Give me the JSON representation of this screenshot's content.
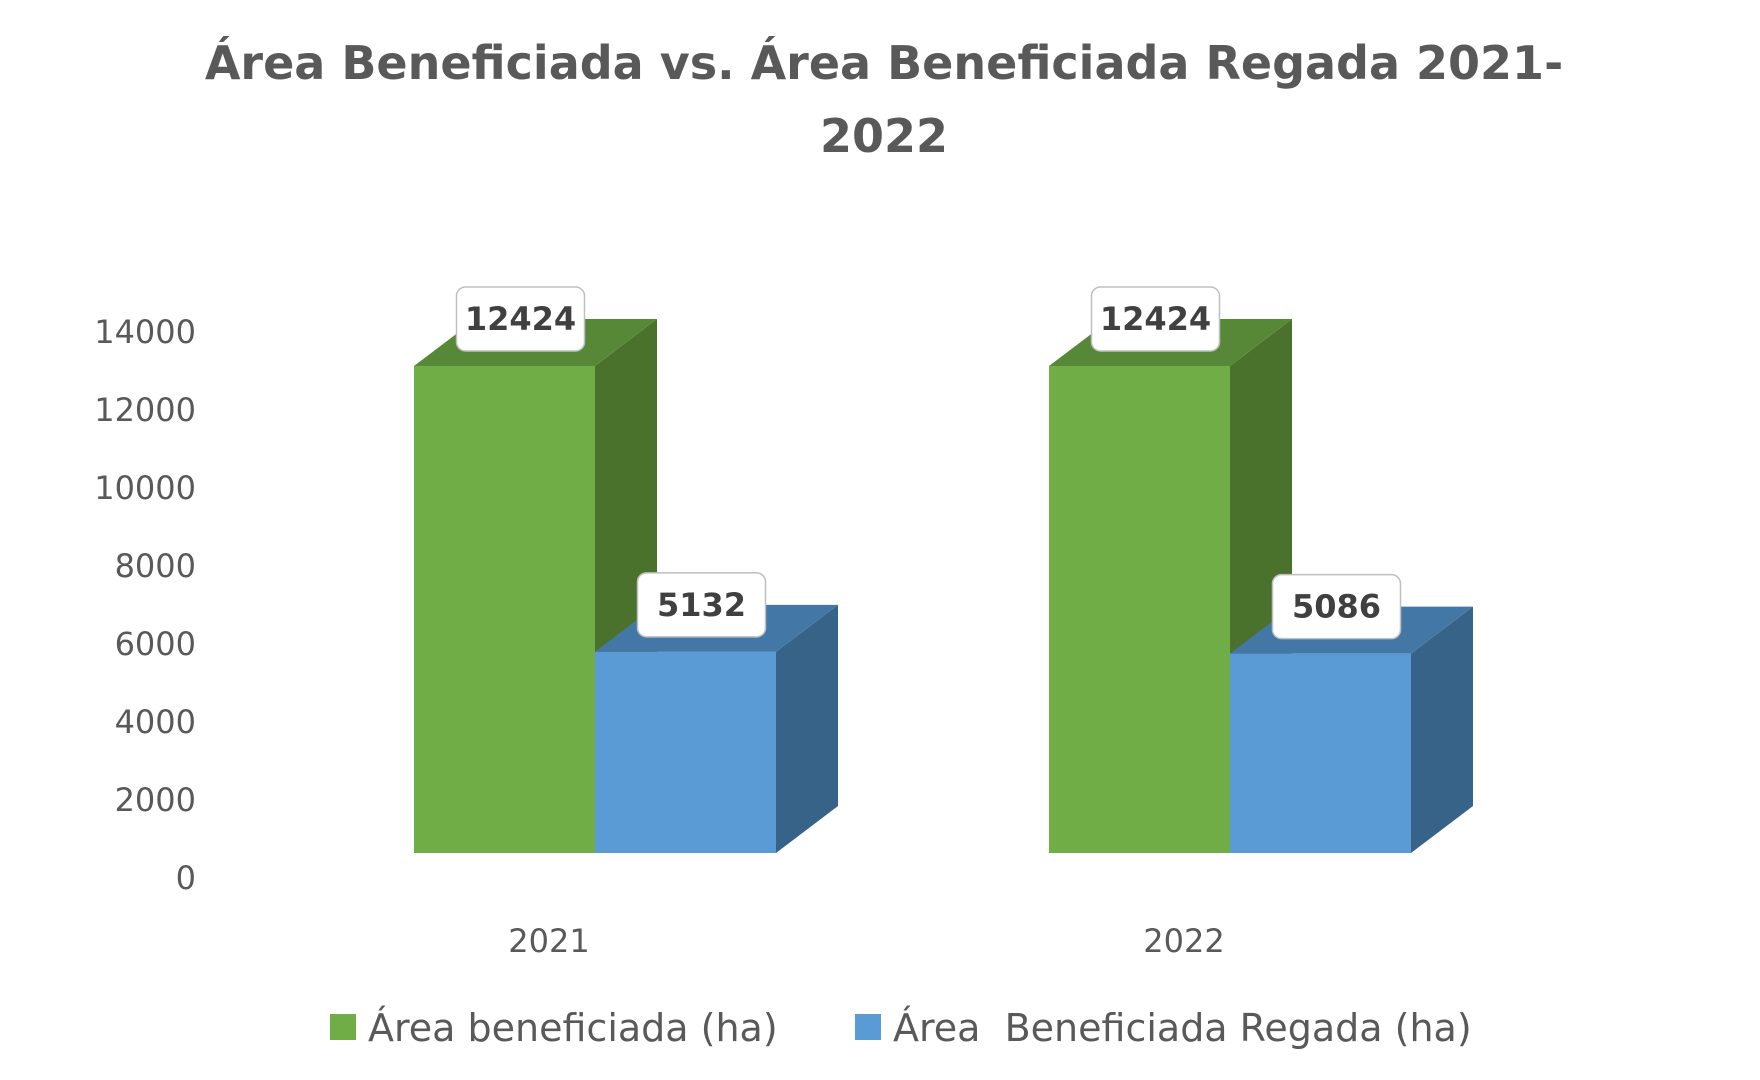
{
  "chart_data": {
    "type": "bar",
    "title_lines": [
      "Área Beneficiada vs. Área Beneficiada Regada 2021-",
      "2022"
    ],
    "xlabel": "",
    "ylabel": "",
    "categories": [
      "2021",
      "2022"
    ],
    "ylim": [
      0,
      14000
    ],
    "yticks": [
      0,
      2000,
      4000,
      6000,
      8000,
      10000,
      12000,
      14000
    ],
    "series": [
      {
        "name": "Área beneficiada (ha)",
        "values": [
          12424,
          12424
        ],
        "color": "#70AD47",
        "side_color": "#4A722D",
        "top_color": "#578838"
      },
      {
        "name": "Área  Beneficiada Regada (ha)",
        "values": [
          5132,
          5086
        ],
        "color": "#5B9BD5",
        "side_color": "#376389",
        "top_color": "#4378A6"
      }
    ],
    "legend_position": "bottom",
    "grid": false,
    "data_labels": true,
    "style": "3d-clustered-column"
  }
}
